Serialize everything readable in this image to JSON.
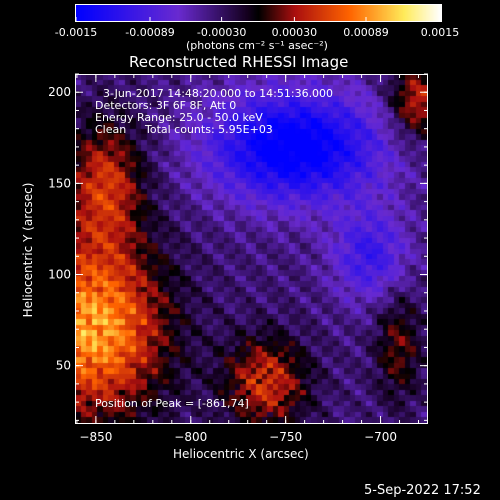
{
  "title": "Reconstructed RHESSI Image",
  "colorbar": {
    "ticks": [
      "-0.0015",
      "-0.00089",
      "-0.00030",
      "0.00030",
      "0.00089",
      "0.0015"
    ],
    "tick_values": [
      -0.0015,
      -0.00089,
      -0.0003,
      0.0003,
      0.00089,
      0.0015
    ],
    "label": "(photons cm⁻² s⁻¹ asec⁻²)",
    "colors": [
      "#0000ff",
      "#6a2ad0",
      "#000000",
      "#b01010",
      "#ff6a00",
      "#ffff80",
      "#ffffff"
    ]
  },
  "annotations": {
    "time": "3-Jun-2017 14:48:20.000 to 14:51:36.000",
    "detectors": "Detectors: 3F 6F 8F, Att 0",
    "energy": "Energy Range: 25.0 - 50.0 keV",
    "clean": "Clean",
    "counts": "Total counts: 5.95E+03",
    "peak": "Position of Peak = [-861,74]"
  },
  "footer_date": "5-Sep-2022 17:52",
  "chart_data": {
    "type": "heatmap",
    "title": "Reconstructed RHESSI Image",
    "xlabel": "Heliocentric X (arcsec)",
    "ylabel": "Heliocentric Y (arcsec)",
    "xlim": [
      -861,
      -675
    ],
    "ylim": [
      18,
      210
    ],
    "xticks": [
      -850,
      -800,
      -750,
      -700
    ],
    "yticks": [
      50,
      100,
      150,
      200
    ],
    "value_range": [
      -0.0015,
      0.0015
    ],
    "peak": [
      -861,
      74
    ],
    "description_regions": [
      {
        "name": "bright source",
        "x": [
          -861,
          -790
        ],
        "y": [
          18,
          180
        ],
        "value": 0.0013
      },
      {
        "name": "secondary source",
        "x": [
          -780,
          -740
        ],
        "y": [
          18,
          80
        ],
        "value": 0.0008
      },
      {
        "name": "corner source",
        "x": [
          -700,
          -675
        ],
        "y": [
          170,
          210
        ],
        "value": 0.0006
      },
      {
        "name": "negative background",
        "x": [
          -800,
          -700
        ],
        "y": [
          130,
          200
        ],
        "value": -0.001
      }
    ]
  }
}
